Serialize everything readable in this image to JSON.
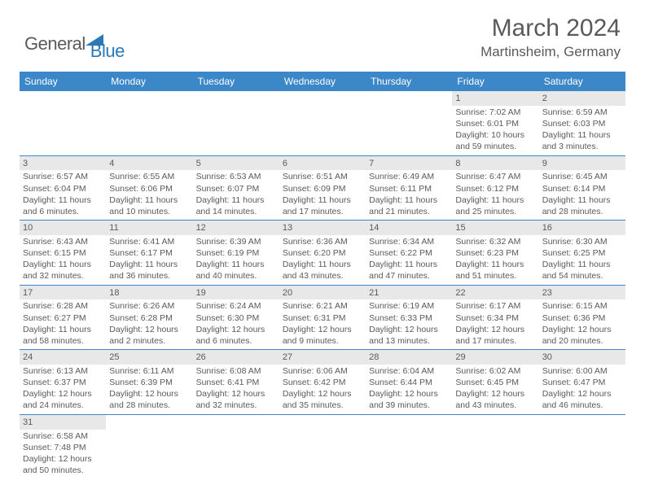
{
  "brand": {
    "part1": "General",
    "part2": "Blue"
  },
  "title": "March 2024",
  "location": "Martinsheim, Germany",
  "colors": {
    "header_bg": "#3b87c8",
    "header_text": "#ffffff",
    "daynum_bg": "#e8e8e8",
    "divider": "#3b87c8",
    "body_text": "#5a5a5a",
    "brand_blue": "#2a7ab8"
  },
  "day_names": [
    "Sunday",
    "Monday",
    "Tuesday",
    "Wednesday",
    "Thursday",
    "Friday",
    "Saturday"
  ],
  "weeks": [
    [
      {
        "n": "",
        "sr": "",
        "ss": "",
        "dl": ""
      },
      {
        "n": "",
        "sr": "",
        "ss": "",
        "dl": ""
      },
      {
        "n": "",
        "sr": "",
        "ss": "",
        "dl": ""
      },
      {
        "n": "",
        "sr": "",
        "ss": "",
        "dl": ""
      },
      {
        "n": "",
        "sr": "",
        "ss": "",
        "dl": ""
      },
      {
        "n": "1",
        "sr": "Sunrise: 7:02 AM",
        "ss": "Sunset: 6:01 PM",
        "dl": "Daylight: 10 hours and 59 minutes."
      },
      {
        "n": "2",
        "sr": "Sunrise: 6:59 AM",
        "ss": "Sunset: 6:03 PM",
        "dl": "Daylight: 11 hours and 3 minutes."
      }
    ],
    [
      {
        "n": "3",
        "sr": "Sunrise: 6:57 AM",
        "ss": "Sunset: 6:04 PM",
        "dl": "Daylight: 11 hours and 6 minutes."
      },
      {
        "n": "4",
        "sr": "Sunrise: 6:55 AM",
        "ss": "Sunset: 6:06 PM",
        "dl": "Daylight: 11 hours and 10 minutes."
      },
      {
        "n": "5",
        "sr": "Sunrise: 6:53 AM",
        "ss": "Sunset: 6:07 PM",
        "dl": "Daylight: 11 hours and 14 minutes."
      },
      {
        "n": "6",
        "sr": "Sunrise: 6:51 AM",
        "ss": "Sunset: 6:09 PM",
        "dl": "Daylight: 11 hours and 17 minutes."
      },
      {
        "n": "7",
        "sr": "Sunrise: 6:49 AM",
        "ss": "Sunset: 6:11 PM",
        "dl": "Daylight: 11 hours and 21 minutes."
      },
      {
        "n": "8",
        "sr": "Sunrise: 6:47 AM",
        "ss": "Sunset: 6:12 PM",
        "dl": "Daylight: 11 hours and 25 minutes."
      },
      {
        "n": "9",
        "sr": "Sunrise: 6:45 AM",
        "ss": "Sunset: 6:14 PM",
        "dl": "Daylight: 11 hours and 28 minutes."
      }
    ],
    [
      {
        "n": "10",
        "sr": "Sunrise: 6:43 AM",
        "ss": "Sunset: 6:15 PM",
        "dl": "Daylight: 11 hours and 32 minutes."
      },
      {
        "n": "11",
        "sr": "Sunrise: 6:41 AM",
        "ss": "Sunset: 6:17 PM",
        "dl": "Daylight: 11 hours and 36 minutes."
      },
      {
        "n": "12",
        "sr": "Sunrise: 6:39 AM",
        "ss": "Sunset: 6:19 PM",
        "dl": "Daylight: 11 hours and 40 minutes."
      },
      {
        "n": "13",
        "sr": "Sunrise: 6:36 AM",
        "ss": "Sunset: 6:20 PM",
        "dl": "Daylight: 11 hours and 43 minutes."
      },
      {
        "n": "14",
        "sr": "Sunrise: 6:34 AM",
        "ss": "Sunset: 6:22 PM",
        "dl": "Daylight: 11 hours and 47 minutes."
      },
      {
        "n": "15",
        "sr": "Sunrise: 6:32 AM",
        "ss": "Sunset: 6:23 PM",
        "dl": "Daylight: 11 hours and 51 minutes."
      },
      {
        "n": "16",
        "sr": "Sunrise: 6:30 AM",
        "ss": "Sunset: 6:25 PM",
        "dl": "Daylight: 11 hours and 54 minutes."
      }
    ],
    [
      {
        "n": "17",
        "sr": "Sunrise: 6:28 AM",
        "ss": "Sunset: 6:27 PM",
        "dl": "Daylight: 11 hours and 58 minutes."
      },
      {
        "n": "18",
        "sr": "Sunrise: 6:26 AM",
        "ss": "Sunset: 6:28 PM",
        "dl": "Daylight: 12 hours and 2 minutes."
      },
      {
        "n": "19",
        "sr": "Sunrise: 6:24 AM",
        "ss": "Sunset: 6:30 PM",
        "dl": "Daylight: 12 hours and 6 minutes."
      },
      {
        "n": "20",
        "sr": "Sunrise: 6:21 AM",
        "ss": "Sunset: 6:31 PM",
        "dl": "Daylight: 12 hours and 9 minutes."
      },
      {
        "n": "21",
        "sr": "Sunrise: 6:19 AM",
        "ss": "Sunset: 6:33 PM",
        "dl": "Daylight: 12 hours and 13 minutes."
      },
      {
        "n": "22",
        "sr": "Sunrise: 6:17 AM",
        "ss": "Sunset: 6:34 PM",
        "dl": "Daylight: 12 hours and 17 minutes."
      },
      {
        "n": "23",
        "sr": "Sunrise: 6:15 AM",
        "ss": "Sunset: 6:36 PM",
        "dl": "Daylight: 12 hours and 20 minutes."
      }
    ],
    [
      {
        "n": "24",
        "sr": "Sunrise: 6:13 AM",
        "ss": "Sunset: 6:37 PM",
        "dl": "Daylight: 12 hours and 24 minutes."
      },
      {
        "n": "25",
        "sr": "Sunrise: 6:11 AM",
        "ss": "Sunset: 6:39 PM",
        "dl": "Daylight: 12 hours and 28 minutes."
      },
      {
        "n": "26",
        "sr": "Sunrise: 6:08 AM",
        "ss": "Sunset: 6:41 PM",
        "dl": "Daylight: 12 hours and 32 minutes."
      },
      {
        "n": "27",
        "sr": "Sunrise: 6:06 AM",
        "ss": "Sunset: 6:42 PM",
        "dl": "Daylight: 12 hours and 35 minutes."
      },
      {
        "n": "28",
        "sr": "Sunrise: 6:04 AM",
        "ss": "Sunset: 6:44 PM",
        "dl": "Daylight: 12 hours and 39 minutes."
      },
      {
        "n": "29",
        "sr": "Sunrise: 6:02 AM",
        "ss": "Sunset: 6:45 PM",
        "dl": "Daylight: 12 hours and 43 minutes."
      },
      {
        "n": "30",
        "sr": "Sunrise: 6:00 AM",
        "ss": "Sunset: 6:47 PM",
        "dl": "Daylight: 12 hours and 46 minutes."
      }
    ],
    [
      {
        "n": "31",
        "sr": "Sunrise: 6:58 AM",
        "ss": "Sunset: 7:48 PM",
        "dl": "Daylight: 12 hours and 50 minutes."
      },
      {
        "n": "",
        "sr": "",
        "ss": "",
        "dl": ""
      },
      {
        "n": "",
        "sr": "",
        "ss": "",
        "dl": ""
      },
      {
        "n": "",
        "sr": "",
        "ss": "",
        "dl": ""
      },
      {
        "n": "",
        "sr": "",
        "ss": "",
        "dl": ""
      },
      {
        "n": "",
        "sr": "",
        "ss": "",
        "dl": ""
      },
      {
        "n": "",
        "sr": "",
        "ss": "",
        "dl": ""
      }
    ]
  ]
}
